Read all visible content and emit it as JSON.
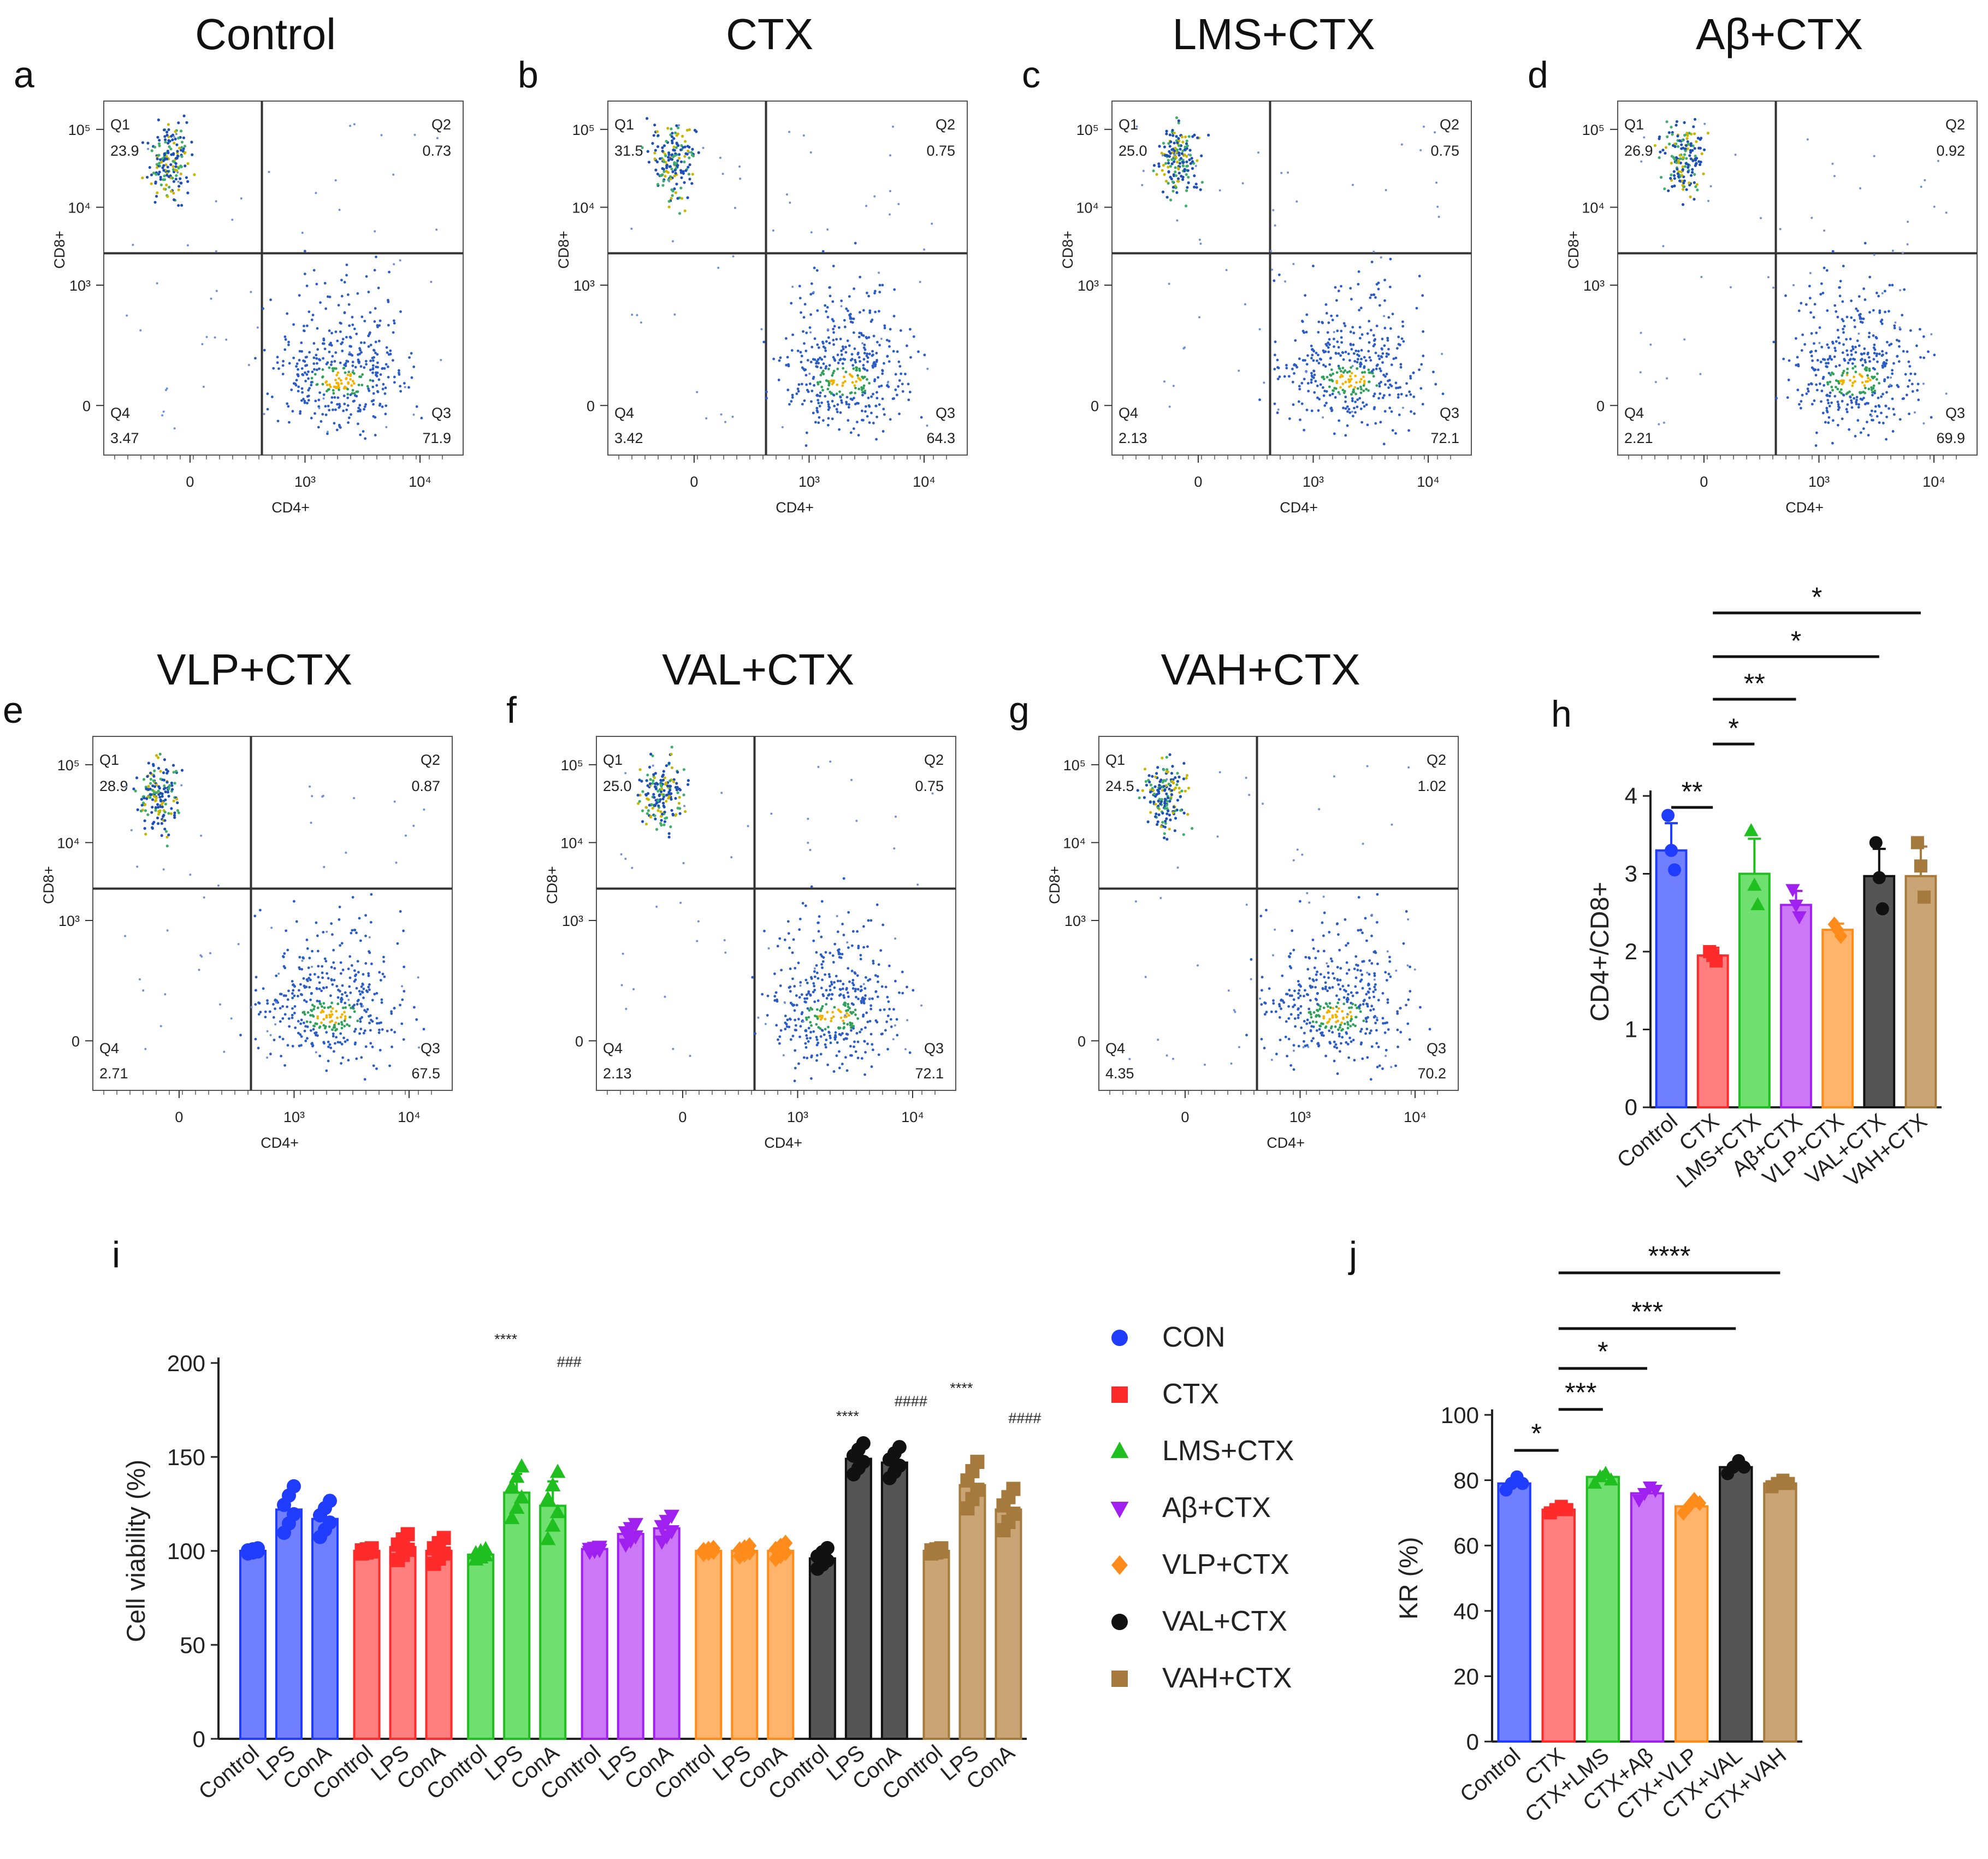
{
  "figure": {
    "panel_letters": [
      "a",
      "b",
      "c",
      "d",
      "e",
      "f",
      "g",
      "h",
      "i",
      "j"
    ],
    "legend": {
      "entries": [
        {
          "label": "CON",
          "color": "#1f3cff",
          "marker": "circle"
        },
        {
          "label": "CTX",
          "color": "#ff2a2a",
          "marker": "square"
        },
        {
          "label": "LMS+CTX",
          "color": "#1fbf1f",
          "marker": "triangle-up"
        },
        {
          "label": "Aβ+CTX",
          "color": "#a020f0",
          "marker": "triangle-down"
        },
        {
          "label": "VLP+CTX",
          "color": "#ff8c1a",
          "marker": "diamond"
        },
        {
          "label": "VAL+CTX",
          "color": "#111111",
          "marker": "circle"
        },
        {
          "label": "VAH+CTX",
          "color": "#a57a3c",
          "marker": "square"
        }
      ]
    }
  },
  "chart_data": [
    {
      "type": "scatter",
      "subtype": "flow-cytometry-quadrant",
      "panels": [
        {
          "letter": "a",
          "title": "Control",
          "q1": "23.9",
          "q2": "0.73",
          "q3": "71.9",
          "q4": "3.47"
        },
        {
          "letter": "b",
          "title": "CTX",
          "q1": "31.5",
          "q2": "0.75",
          "q3": "64.3",
          "q4": "3.42"
        },
        {
          "letter": "c",
          "title": "LMS+CTX",
          "q1": "25.0",
          "q2": "0.75",
          "q3": "72.1",
          "q4": "2.13"
        },
        {
          "letter": "d",
          "title": "Aβ+CTX",
          "q1": "26.9",
          "q2": "0.92",
          "q3": "69.9",
          "q4": "2.21"
        },
        {
          "letter": "e",
          "title": "VLP+CTX",
          "q1": "28.9",
          "q2": "0.87",
          "q3": "67.5",
          "q4": "2.71"
        },
        {
          "letter": "f",
          "title": "VAL+CTX",
          "q1": "25.0",
          "q2": "0.75",
          "q3": "72.1",
          "q4": "2.13"
        },
        {
          "letter": "g",
          "title": "VAH+CTX",
          "q1": "24.5",
          "q2": "1.02",
          "q3": "70.2",
          "q4": "4.35"
        }
      ],
      "quadrant_labels": [
        "Q1",
        "Q2",
        "Q3",
        "Q4"
      ],
      "xlabel": "CD4+",
      "ylabel": "CD8+",
      "x_ticks": [
        "0",
        "10³",
        "10⁴"
      ],
      "y_ticks": [
        "10⁵",
        "10⁴",
        "10³",
        "0"
      ]
    },
    {
      "type": "bar",
      "panel": "h",
      "ylabel": "CD4+/CD8+",
      "ylim": [
        0,
        4
      ],
      "yticks": [
        0,
        1,
        2,
        3,
        4
      ],
      "categories": [
        "Control",
        "CTX",
        "LMS+CTX",
        "Aβ+CTX",
        "VLP+CTX",
        "VAL+CTX",
        "VAH+CTX"
      ],
      "values": [
        3.3,
        1.95,
        3.0,
        2.6,
        2.28,
        2.97,
        2.97
      ],
      "errors": [
        0.35,
        0.1,
        0.45,
        0.18,
        0.08,
        0.35,
        0.38
      ],
      "points": [
        [
          3.75,
          3.3,
          3.05
        ],
        [
          2.0,
          1.95,
          1.88
        ],
        [
          3.55,
          2.85,
          2.6
        ],
        [
          2.8,
          2.6,
          2.45
        ],
        [
          2.35,
          2.28,
          2.2
        ],
        [
          3.4,
          2.95,
          2.55
        ],
        [
          3.4,
          3.1,
          2.7
        ]
      ],
      "colors": [
        "#1f3cff",
        "#ff2a2a",
        "#1fbf1f",
        "#a020f0",
        "#ff8c1a",
        "#111111",
        "#a57a3c"
      ],
      "fills": [
        "#6f7fff",
        "#ff7f7f",
        "#6fe06f",
        "#cc77f5",
        "#ffb36b",
        "#555555",
        "#c9a475"
      ],
      "markers": [
        "circle",
        "square",
        "triangle-up",
        "triangle-down",
        "diamond",
        "circle",
        "square"
      ],
      "significance": [
        {
          "from": 0,
          "to": 1,
          "label": "**"
        },
        {
          "from": 1,
          "to": 2,
          "label": "*"
        },
        {
          "from": 1,
          "to": 3,
          "label": "**"
        },
        {
          "from": 1,
          "to": 5,
          "label": "*"
        },
        {
          "from": 1,
          "to": 6,
          "label": "*"
        }
      ]
    },
    {
      "type": "bar",
      "panel": "i",
      "ylabel": "Cell viability (%)",
      "ylim": [
        0,
        200
      ],
      "yticks": [
        0,
        50,
        100,
        150,
        200
      ],
      "groups": [
        "CON",
        "CTX",
        "LMS+CTX",
        "Aβ+CTX",
        "VLP+CTX",
        "VAL+CTX",
        "VAH+CTX"
      ],
      "subcategories": [
        "Control",
        "LPS",
        "ConA"
      ],
      "values": [
        [
          100,
          122,
          117
        ],
        [
          100,
          102,
          100
        ],
        [
          98,
          131,
          124
        ],
        [
          101,
          109,
          112
        ],
        [
          100,
          100,
          100
        ],
        [
          96,
          149,
          147
        ],
        [
          100,
          135,
          122
        ]
      ],
      "errors": [
        [
          1,
          9,
          7
        ],
        [
          1,
          5,
          5
        ],
        [
          2,
          10,
          13
        ],
        [
          1,
          4,
          5
        ],
        [
          1,
          2,
          3
        ],
        [
          4,
          6,
          6
        ],
        [
          1,
          9,
          8
        ]
      ],
      "colors": [
        "#1f3cff",
        "#ff2a2a",
        "#1fbf1f",
        "#a020f0",
        "#ff8c1a",
        "#111111",
        "#a57a3c"
      ],
      "fills": [
        "#6f7fff",
        "#ff7f7f",
        "#6fe06f",
        "#cc77f5",
        "#ffb36b",
        "#555555",
        "#c9a475"
      ],
      "markers": [
        "circle",
        "square",
        "triangle-up",
        "triangle-down",
        "diamond",
        "circle",
        "square"
      ],
      "annotations": [
        {
          "group": 2,
          "sub": 1,
          "label": "****",
          "y": 210
        },
        {
          "group": 2,
          "sub": 2,
          "label": "###",
          "y": 198
        },
        {
          "group": 5,
          "sub": 1,
          "label": "****",
          "y": 169
        },
        {
          "group": 5,
          "sub": 2,
          "label": "####",
          "y": 177
        },
        {
          "group": 6,
          "sub": 1,
          "label": "****",
          "y": 184
        },
        {
          "group": 6,
          "sub": 2,
          "label": "####",
          "y": 168
        }
      ]
    },
    {
      "type": "bar",
      "panel": "j",
      "ylabel": "KR (%)",
      "ylim": [
        0,
        100
      ],
      "yticks": [
        0,
        20,
        40,
        60,
        80,
        100
      ],
      "categories": [
        "Control",
        "CTX",
        "CTX+LMS",
        "CTX+Aβ",
        "CTX+VLP",
        "CTX+VAL",
        "CTX+VAH"
      ],
      "values": [
        79,
        71,
        81,
        76,
        72,
        84,
        79
      ],
      "errors": [
        2.5,
        1.5,
        2,
        2,
        2.5,
        1.5,
        1
      ],
      "points": [
        [
          77,
          79,
          81,
          79
        ],
        [
          70,
          71,
          72,
          71
        ],
        [
          79,
          81,
          82,
          80
        ],
        [
          74,
          76,
          78,
          77
        ],
        [
          70,
          72,
          74,
          73
        ],
        [
          82,
          84,
          86,
          84
        ],
        [
          78,
          79,
          80,
          79
        ]
      ],
      "colors": [
        "#1f3cff",
        "#ff2a2a",
        "#1fbf1f",
        "#a020f0",
        "#ff8c1a",
        "#111111",
        "#a57a3c"
      ],
      "fills": [
        "#6f7fff",
        "#ff7f7f",
        "#6fe06f",
        "#cc77f5",
        "#ffb36b",
        "#555555",
        "#c9a475"
      ],
      "markers": [
        "circle",
        "square",
        "triangle-up",
        "triangle-down",
        "diamond",
        "circle",
        "square"
      ],
      "significance": [
        {
          "from": 0,
          "to": 1,
          "label": "*"
        },
        {
          "from": 1,
          "to": 2,
          "label": "***"
        },
        {
          "from": 1,
          "to": 3,
          "label": "*"
        },
        {
          "from": 1,
          "to": 5,
          "label": "***"
        },
        {
          "from": 1,
          "to": 6,
          "label": "****"
        }
      ]
    }
  ]
}
